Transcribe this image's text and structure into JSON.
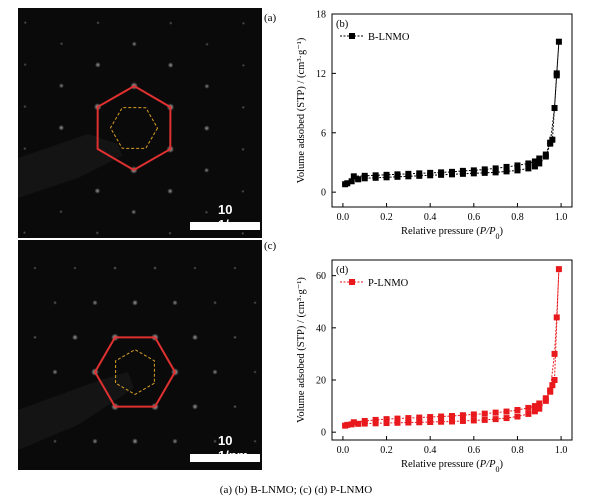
{
  "panels": {
    "a": {
      "letter": "(a)",
      "scale_text": "10 1/nm"
    },
    "c": {
      "letter": "(c)",
      "scale_text": "10 1/nm"
    }
  },
  "chart_data": [
    {
      "type": "line",
      "panel_label": "(b)",
      "xlabel": "Relative pressure (P/P0)",
      "ylabel": "Volume adsobed (STP) / (cm³·g⁻¹)",
      "xlim": [
        -0.05,
        1.05
      ],
      "ylim": [
        -1.5,
        18
      ],
      "xticks": [
        "0.0",
        "0.2",
        "0.4",
        "0.6",
        "0.8",
        "1.0"
      ],
      "yticks": [
        "0",
        "6",
        "12",
        "18"
      ],
      "legend_position": "top-left",
      "series": [
        {
          "name": "B-LNMO",
          "color": "#000000",
          "x": [
            0.01,
            0.02,
            0.04,
            0.07,
            0.1,
            0.15,
            0.2,
            0.25,
            0.3,
            0.35,
            0.4,
            0.45,
            0.5,
            0.55,
            0.6,
            0.65,
            0.7,
            0.75,
            0.8,
            0.85,
            0.88,
            0.9,
            0.93,
            0.95,
            0.97,
            0.98,
            0.99,
            0.98,
            0.96,
            0.95,
            0.93,
            0.9,
            0.88,
            0.85,
            0.8,
            0.75,
            0.7,
            0.65,
            0.6,
            0.55,
            0.5,
            0.45,
            0.4,
            0.35,
            0.3,
            0.25,
            0.2,
            0.15,
            0.1,
            0.05
          ],
          "y": [
            0.8,
            0.9,
            1.1,
            1.3,
            1.4,
            1.45,
            1.5,
            1.55,
            1.6,
            1.65,
            1.7,
            1.75,
            1.8,
            1.85,
            1.9,
            1.95,
            2.0,
            2.1,
            2.2,
            2.4,
            2.6,
            2.9,
            3.6,
            4.9,
            8.5,
            11.8,
            15.2,
            12.0,
            5.3,
            5.0,
            3.8,
            3.4,
            3.1,
            2.9,
            2.7,
            2.55,
            2.4,
            2.3,
            2.2,
            2.15,
            2.05,
            2.0,
            1.95,
            1.9,
            1.85,
            1.8,
            1.75,
            1.7,
            1.65,
            1.6
          ]
        }
      ]
    },
    {
      "type": "line",
      "panel_label": "(d)",
      "xlabel": "Relative pressure (P/P0)",
      "ylabel": "Volume adsobed (STP) / (cm³·g⁻¹)",
      "xlim": [
        -0.05,
        1.05
      ],
      "ylim": [
        -3,
        66
      ],
      "xticks": [
        "0.0",
        "0.2",
        "0.4",
        "0.6",
        "0.8",
        "1.0"
      ],
      "yticks": [
        "0",
        "20",
        "40",
        "60"
      ],
      "legend_position": "top-left",
      "series": [
        {
          "name": "P-LNMO",
          "color": "#e8191c",
          "x": [
            0.01,
            0.02,
            0.04,
            0.07,
            0.1,
            0.15,
            0.2,
            0.25,
            0.3,
            0.35,
            0.4,
            0.45,
            0.5,
            0.55,
            0.6,
            0.65,
            0.7,
            0.75,
            0.8,
            0.85,
            0.88,
            0.9,
            0.93,
            0.95,
            0.97,
            0.98,
            0.99,
            0.97,
            0.96,
            0.95,
            0.93,
            0.9,
            0.88,
            0.85,
            0.8,
            0.75,
            0.7,
            0.65,
            0.6,
            0.55,
            0.5,
            0.45,
            0.4,
            0.35,
            0.3,
            0.25,
            0.2,
            0.15,
            0.1,
            0.05
          ],
          "y": [
            2.5,
            2.8,
            3.0,
            3.2,
            3.3,
            3.4,
            3.5,
            3.6,
            3.7,
            3.8,
            3.9,
            4.0,
            4.1,
            4.3,
            4.5,
            4.7,
            5.0,
            5.4,
            6.0,
            7.0,
            8.0,
            9.0,
            12.0,
            16.0,
            30.0,
            44.0,
            62.5,
            20.0,
            18.0,
            15.5,
            13.0,
            11.0,
            10.0,
            9.3,
            8.5,
            7.9,
            7.5,
            7.1,
            6.8,
            6.5,
            6.2,
            6.0,
            5.8,
            5.6,
            5.4,
            5.2,
            5.0,
            4.7,
            4.3,
            3.8
          ]
        }
      ]
    }
  ],
  "caption": "(a) (b) B-LNMO; (c) (d) P-LNMO"
}
